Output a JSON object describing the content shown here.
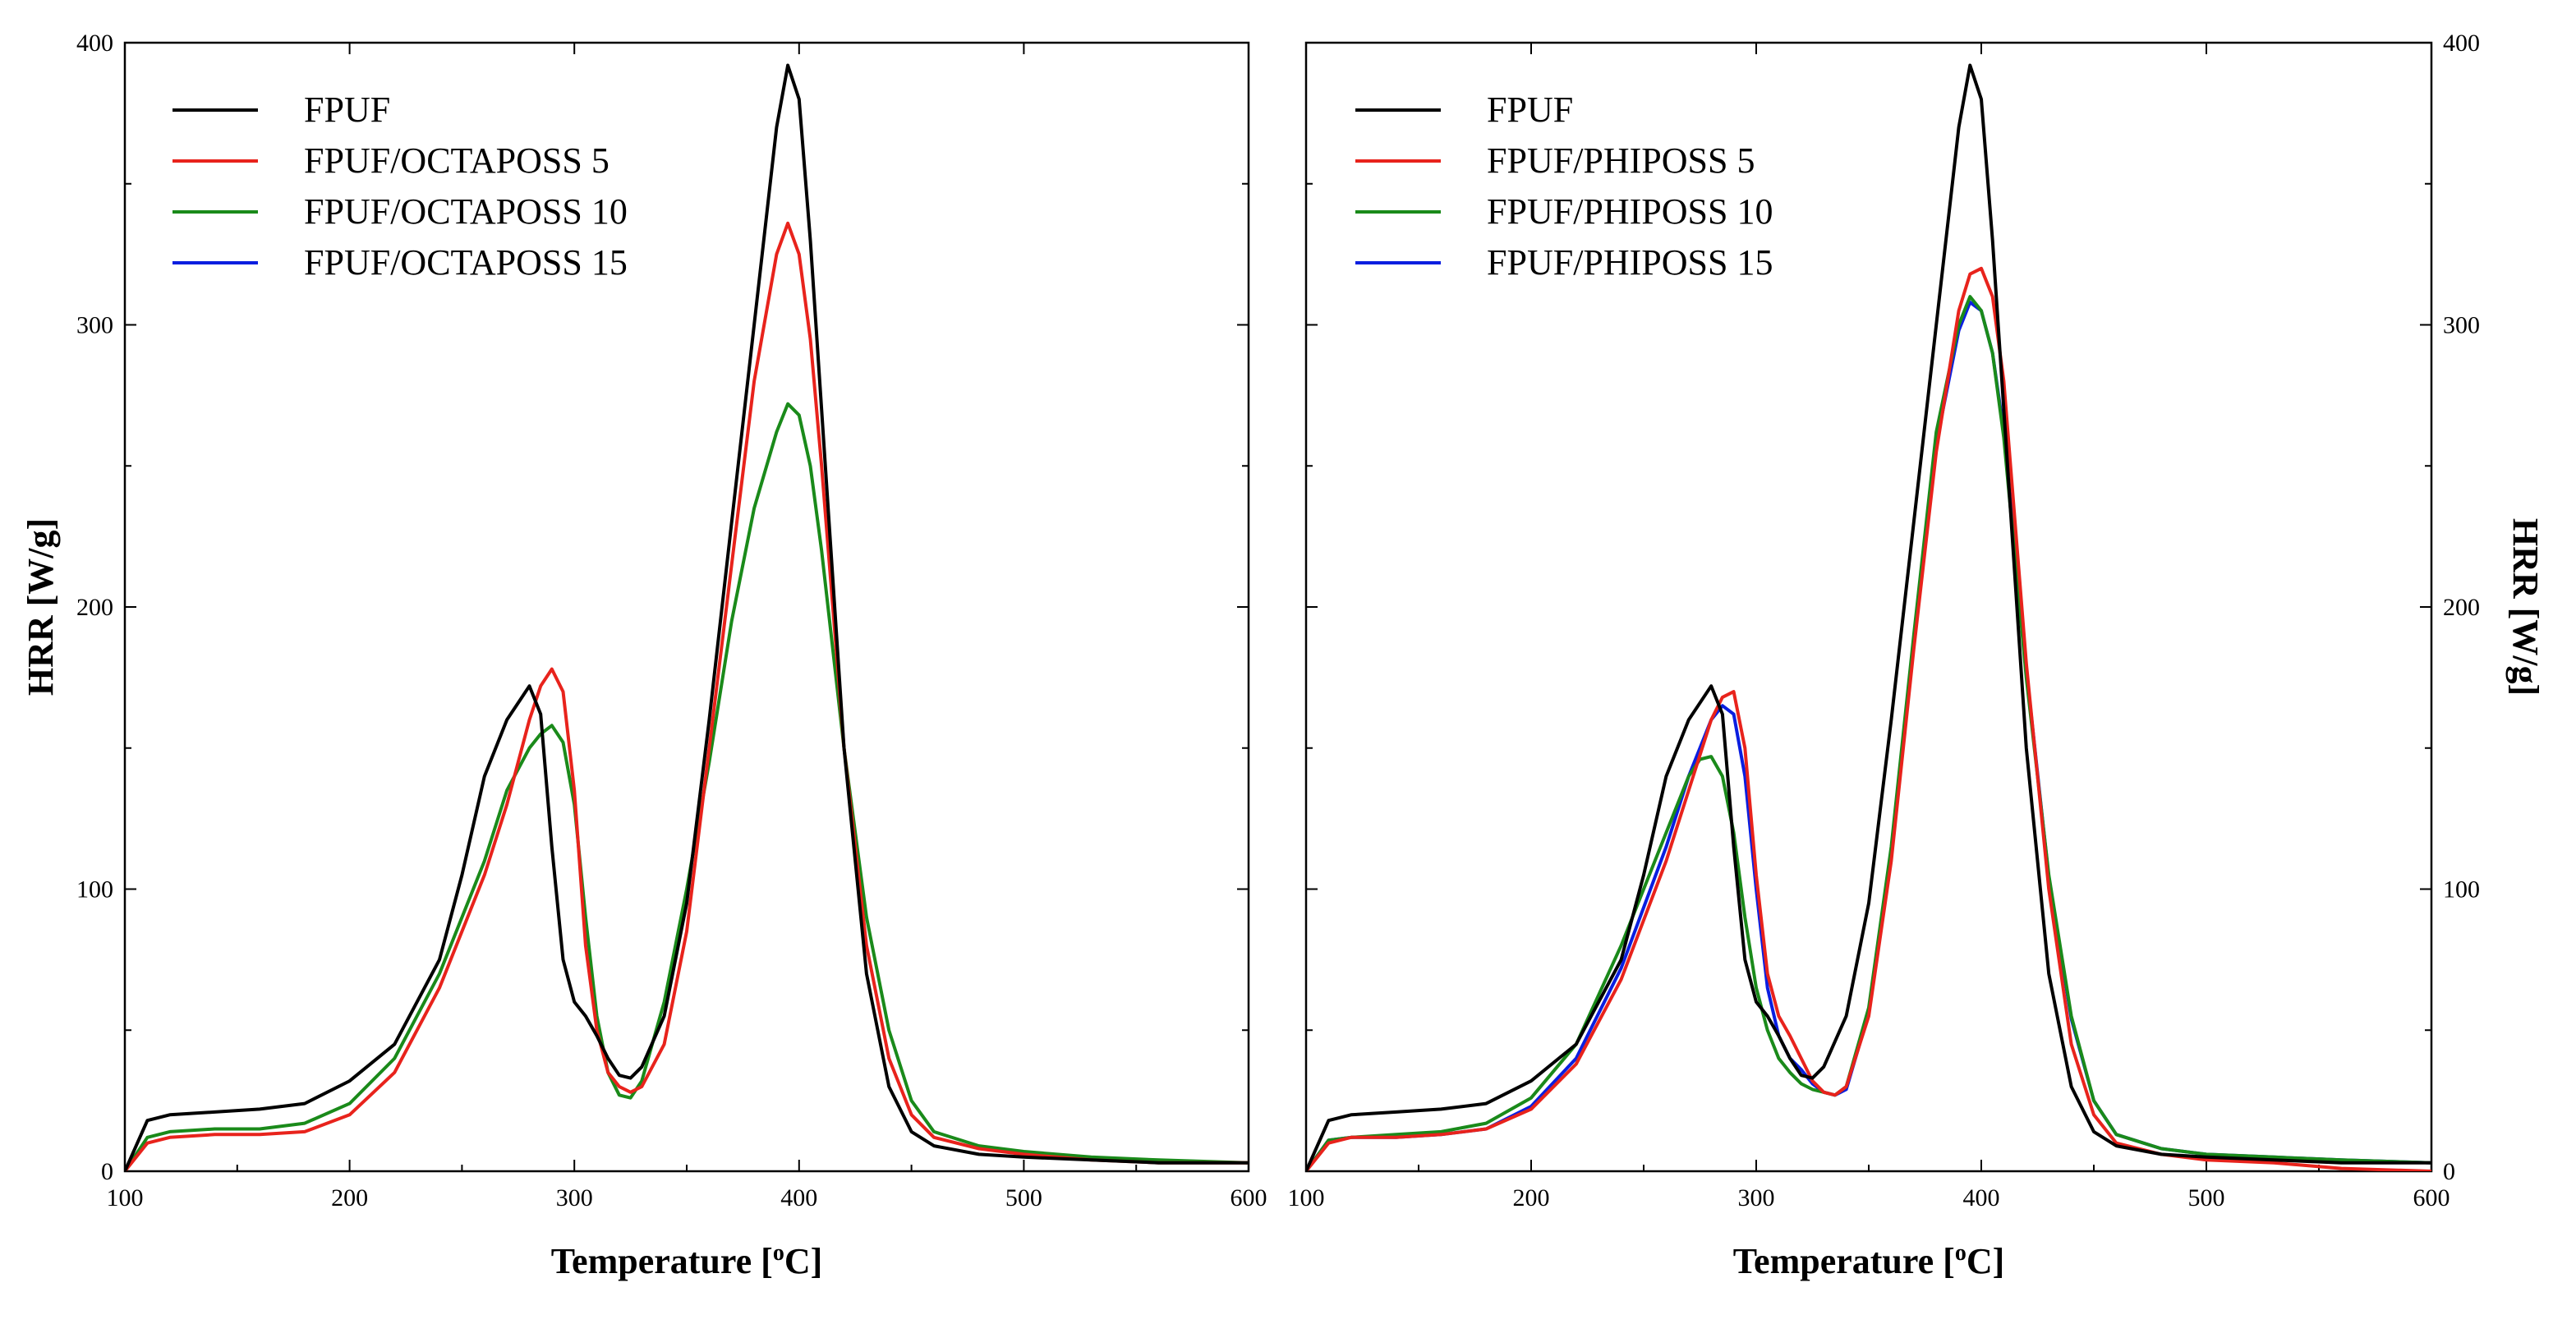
{
  "chart_data": [
    {
      "type": "line",
      "title": "",
      "xlabel": "Temperature [",
      "xlabel_sup": "o",
      "xlabel_tail": "C]",
      "ylabel": "HRR [W/g]",
      "xlim": [
        100,
        600
      ],
      "ylim": [
        0,
        400
      ],
      "xticks": [
        "100",
        "200",
        "300",
        "400",
        "500",
        "600"
      ],
      "yticks": [
        "0",
        "100",
        "200",
        "300",
        "400"
      ],
      "legend_position": "top-left",
      "series": [
        {
          "name": "FPUF",
          "color": "#000000",
          "x": [
            100,
            110,
            120,
            140,
            160,
            180,
            200,
            220,
            240,
            250,
            260,
            270,
            280,
            285,
            290,
            295,
            300,
            305,
            310,
            315,
            320,
            325,
            330,
            340,
            350,
            360,
            370,
            380,
            390,
            395,
            400,
            405,
            410,
            420,
            430,
            440,
            450,
            460,
            480,
            500,
            530,
            560,
            600
          ],
          "y": [
            0,
            18,
            20,
            21,
            22,
            24,
            32,
            45,
            75,
            105,
            140,
            160,
            172,
            162,
            115,
            75,
            60,
            55,
            48,
            40,
            34,
            33,
            37,
            55,
            95,
            160,
            230,
            300,
            370,
            392,
            380,
            330,
            270,
            150,
            70,
            30,
            14,
            9,
            6,
            5,
            4,
            3,
            3
          ]
        },
        {
          "name": "FPUF/OCTAPOSS 5",
          "color": "#e8231c",
          "x": [
            100,
            110,
            120,
            140,
            160,
            180,
            200,
            220,
            240,
            260,
            270,
            280,
            285,
            290,
            295,
            300,
            305,
            310,
            315,
            320,
            325,
            330,
            340,
            350,
            360,
            370,
            380,
            390,
            395,
            400,
            405,
            410,
            420,
            430,
            440,
            450,
            460,
            480,
            500,
            530,
            560,
            600
          ],
          "y": [
            0,
            10,
            12,
            13,
            13,
            14,
            20,
            35,
            65,
            105,
            130,
            160,
            172,
            178,
            170,
            135,
            80,
            50,
            35,
            30,
            28,
            30,
            45,
            85,
            150,
            215,
            280,
            325,
            336,
            325,
            295,
            250,
            150,
            80,
            40,
            20,
            12,
            8,
            6,
            4,
            3,
            3
          ]
        },
        {
          "name": "FPUF/OCTAPOSS 10",
          "color": "#1a8a1a",
          "x": [
            100,
            110,
            120,
            140,
            160,
            180,
            200,
            220,
            240,
            260,
            270,
            280,
            285,
            290,
            295,
            300,
            305,
            310,
            315,
            320,
            325,
            330,
            340,
            350,
            360,
            370,
            380,
            390,
            395,
            400,
            405,
            410,
            420,
            430,
            440,
            450,
            460,
            480,
            500,
            530,
            560,
            600
          ],
          "y": [
            0,
            12,
            14,
            15,
            15,
            17,
            24,
            40,
            70,
            110,
            135,
            150,
            155,
            158,
            152,
            130,
            90,
            55,
            35,
            27,
            26,
            32,
            60,
            100,
            145,
            195,
            235,
            262,
            272,
            268,
            250,
            220,
            150,
            90,
            50,
            25,
            14,
            9,
            7,
            5,
            4,
            3
          ]
        },
        {
          "name": "FPUF/OCTAPOSS 15",
          "color": "#0a1ee0",
          "x": [],
          "y": []
        }
      ]
    },
    {
      "type": "line",
      "title": "",
      "xlabel": "Temperature [",
      "xlabel_sup": "o",
      "xlabel_tail": "C]",
      "ylabel": "HRR [W/g]",
      "xlim": [
        100,
        600
      ],
      "ylim": [
        0,
        400
      ],
      "xticks": [
        "100",
        "200",
        "300",
        "400",
        "500",
        "600"
      ],
      "yticks": [
        "0",
        "100",
        "200",
        "300",
        "400"
      ],
      "legend_position": "top-left",
      "series": [
        {
          "name": "FPUF",
          "color": "#000000",
          "x": [
            100,
            110,
            120,
            140,
            160,
            180,
            200,
            220,
            240,
            250,
            260,
            270,
            280,
            285,
            290,
            295,
            300,
            305,
            310,
            315,
            320,
            325,
            330,
            340,
            350,
            360,
            370,
            380,
            390,
            395,
            400,
            405,
            410,
            420,
            430,
            440,
            450,
            460,
            480,
            500,
            530,
            560,
            600
          ],
          "y": [
            0,
            18,
            20,
            21,
            22,
            24,
            32,
            45,
            75,
            105,
            140,
            160,
            172,
            162,
            115,
            75,
            60,
            55,
            48,
            40,
            34,
            33,
            37,
            55,
            95,
            160,
            230,
            300,
            370,
            392,
            380,
            330,
            270,
            150,
            70,
            30,
            14,
            9,
            6,
            5,
            4,
            3,
            3
          ]
        },
        {
          "name": "FPUF/PHIPOSS 5",
          "color": "#e8231c",
          "x": [
            100,
            110,
            120,
            140,
            160,
            180,
            200,
            220,
            240,
            260,
            270,
            280,
            285,
            290,
            295,
            300,
            305,
            310,
            315,
            320,
            325,
            330,
            335,
            340,
            350,
            360,
            370,
            380,
            390,
            395,
            400,
            405,
            410,
            420,
            430,
            440,
            450,
            460,
            480,
            500,
            530,
            560,
            600
          ],
          "y": [
            0,
            10,
            12,
            12,
            13,
            15,
            22,
            38,
            68,
            110,
            135,
            160,
            168,
            170,
            150,
            105,
            70,
            55,
            48,
            40,
            32,
            28,
            27,
            30,
            55,
            110,
            185,
            255,
            305,
            318,
            320,
            310,
            280,
            180,
            100,
            45,
            20,
            10,
            6,
            4,
            3,
            1,
            0
          ]
        },
        {
          "name": "FPUF/PHIPOSS 10",
          "color": "#1a8a1a",
          "x": [
            100,
            110,
            120,
            140,
            160,
            180,
            200,
            220,
            240,
            260,
            270,
            275,
            280,
            285,
            290,
            295,
            300,
            305,
            310,
            315,
            320,
            325,
            330,
            335,
            340,
            350,
            360,
            370,
            380,
            390,
            395,
            400,
            405,
            410,
            420,
            430,
            440,
            450,
            460,
            480,
            500,
            530,
            560,
            600
          ],
          "y": [
            0,
            11,
            12,
            13,
            14,
            17,
            26,
            45,
            80,
            120,
            140,
            146,
            147,
            140,
            120,
            90,
            65,
            50,
            40,
            35,
            31,
            29,
            28,
            27,
            30,
            58,
            115,
            190,
            262,
            300,
            310,
            305,
            290,
            260,
            175,
            105,
            55,
            25,
            13,
            8,
            6,
            5,
            4,
            3
          ]
        },
        {
          "name": "FPUF/PHIPOSS 15",
          "color": "#0a1ee0",
          "x": [
            100,
            110,
            120,
            140,
            160,
            180,
            200,
            220,
            240,
            260,
            270,
            280,
            285,
            290,
            295,
            300,
            305,
            310,
            315,
            320,
            325,
            330,
            335,
            340,
            350,
            360,
            370,
            380,
            390,
            395,
            400,
            405,
            410,
            420,
            430,
            440,
            450,
            460,
            480,
            500,
            530,
            560,
            600
          ],
          "y": [
            0,
            11,
            12,
            12,
            13,
            15,
            23,
            40,
            72,
            115,
            140,
            160,
            165,
            162,
            140,
            100,
            65,
            48,
            40,
            36,
            31,
            28,
            27,
            29,
            56,
            112,
            188,
            258,
            298,
            308,
            305,
            290,
            262,
            178,
            104,
            54,
            25,
            13,
            8,
            6,
            5,
            4,
            3
          ]
        }
      ]
    }
  ]
}
